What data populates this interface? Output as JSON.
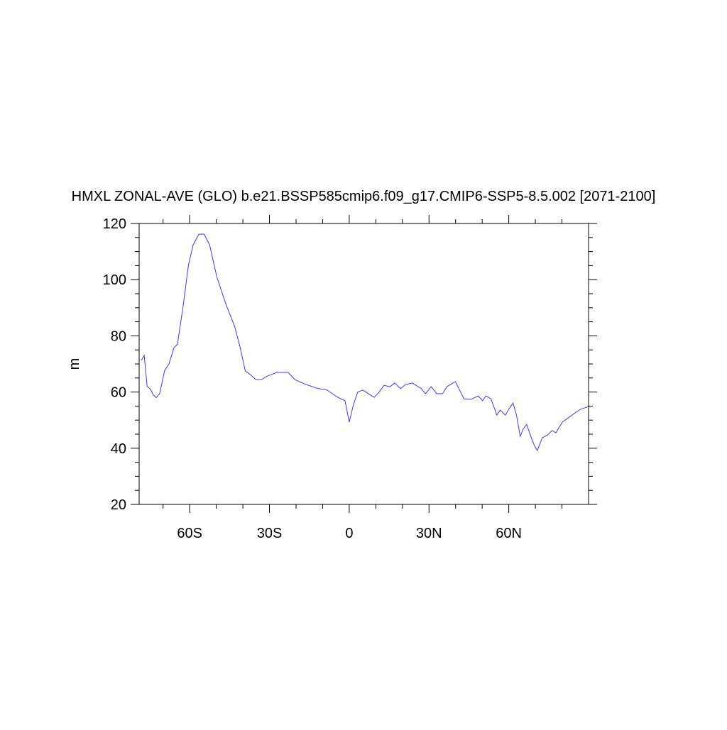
{
  "chart_data": {
    "type": "line",
    "title": "HMXL ZONAL-AVE (GLO) b.e21.BSSP585cmip6.f09_g17.CMIP6-SSP5-8.5.002 [2071-2100]",
    "y_label": "m",
    "x": [
      -78.2,
      -77.1,
      -76,
      -74.7,
      -73.7,
      -72.6,
      -71.3,
      -69.4,
      -67.8,
      -65.9,
      -64.6,
      -62.4,
      -60.5,
      -58.7,
      -56.5,
      -54.6,
      -52.5,
      -49.8,
      -46.3,
      -43.1,
      -41,
      -39.1,
      -37.2,
      -35.1,
      -33,
      -30.8,
      -27.1,
      -23,
      -20.4,
      -16.3,
      -12.3,
      -8.3,
      -4.3,
      -1.6,
      0,
      1.6,
      3.2,
      5.1,
      7.2,
      9.4,
      11.3,
      13.1,
      15.3,
      17.1,
      19.3,
      21.2,
      23.8,
      27.1,
      28.7,
      30.8,
      32.9,
      35.1,
      36.7,
      39.9,
      41.5,
      43.1,
      45.8,
      48.5,
      50.1,
      51.4,
      53.3,
      55.5,
      56.8,
      58.7,
      60.3,
      61.6,
      62.9,
      64.3,
      65.4,
      66.7,
      68.3,
      69.6,
      70.7,
      72.6,
      74.5,
      76.3,
      77.7,
      80.1,
      82.8,
      86.8,
      90
    ],
    "series": [
      {
        "name": "HMXL",
        "color": "#3a3aff",
        "values": [
          71.3,
          73,
          62,
          61,
          59,
          58,
          59.4,
          67.7,
          70,
          75.8,
          77,
          91,
          105,
          112.4,
          116.2,
          116.2,
          112.4,
          101,
          91,
          83.4,
          75.8,
          67.5,
          66.2,
          64.4,
          64.4,
          65.7,
          67,
          67,
          64.4,
          62.7,
          61.4,
          60.7,
          58.1,
          56.9,
          49.3,
          55.6,
          60,
          60.7,
          59.4,
          58.1,
          60,
          62.4,
          61.9,
          63.2,
          61.2,
          62.7,
          63.2,
          61.2,
          59.4,
          61.9,
          59.4,
          59.4,
          61.9,
          63.7,
          60.7,
          57.6,
          57.4,
          58.6,
          56.9,
          58.6,
          57.6,
          51.8,
          53.6,
          51.8,
          54.3,
          56.1,
          51.8,
          44.2,
          46.8,
          48.5,
          44.2,
          41,
          39.2,
          43.7,
          44.7,
          46.3,
          45.5,
          49.3,
          51.1,
          53.8,
          54.8
        ]
      }
    ],
    "xlim": [
      -79,
      90
    ],
    "xticks": [
      {
        "value": -60,
        "label": "60S"
      },
      {
        "value": -30,
        "label": "30S"
      },
      0,
      {
        "value": 30,
        "label": "30N"
      },
      {
        "value": 60,
        "label": "60N"
      }
    ],
    "xminorticks": [
      -70,
      -50,
      -40,
      -20,
      -10,
      10,
      20,
      40,
      50,
      70,
      80
    ],
    "ylim": [
      20,
      120
    ],
    "yticks": [
      20,
      40,
      60,
      80,
      100,
      120
    ],
    "yminorticks": [
      25,
      30,
      35,
      45,
      50,
      55,
      65,
      70,
      75,
      85,
      90,
      95,
      105,
      110,
      115
    ]
  }
}
